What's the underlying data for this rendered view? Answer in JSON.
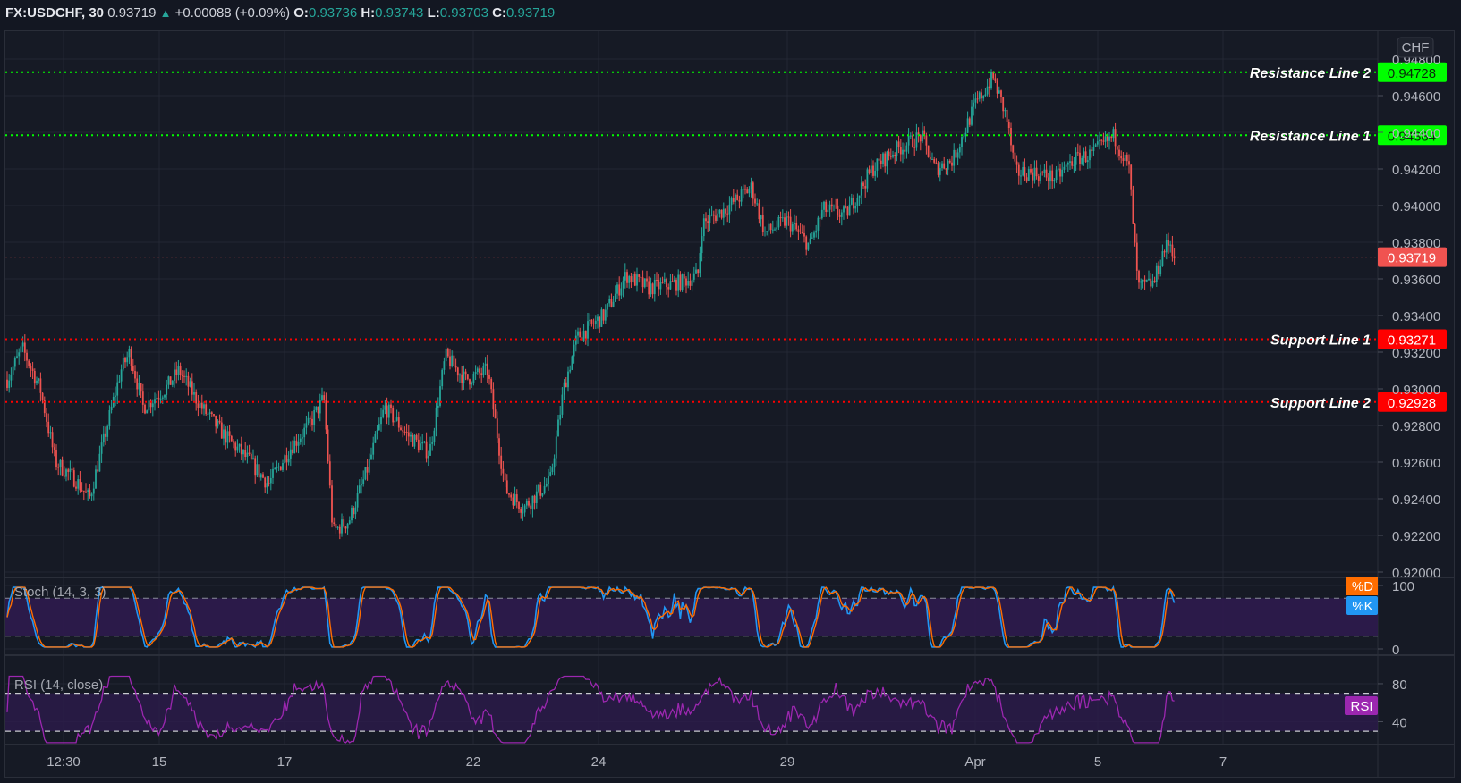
{
  "header": {
    "symbol": "FX:USDCHF, 30",
    "last": "0.93719",
    "change": "+0.00088 (+0.09%)",
    "o_label": "O:",
    "o": "0.93736",
    "h_label": "H:",
    "h": "0.93743",
    "l_label": "L:",
    "l": "0.93703",
    "c_label": "C:",
    "c": "0.93719"
  },
  "currency_badge": "CHF",
  "colors": {
    "background": "#131722",
    "pane": "#161a25",
    "grid": "#232733",
    "up": "#26a69a",
    "down": "#ef5350",
    "resistance": "#00ff00",
    "support": "#ff0000",
    "last_price": "#f05350",
    "stoch_k": "#2196f3",
    "stoch_d": "#ff6d00",
    "rsi": "#9c27b0",
    "band_fill": "#2d1b4e"
  },
  "price_axis": {
    "ticks": [
      "0.94600",
      "0.94400",
      "0.94200",
      "0.94000",
      "0.93800",
      "0.93600",
      "0.93400",
      "0.93200",
      "0.93000",
      "0.92800",
      "0.92600",
      "0.92400",
      "0.92200",
      "0.92000"
    ],
    "partial_top": "0.94800"
  },
  "levels": [
    {
      "name": "Resistance Line 2",
      "value": "0.94728",
      "type": "resistance"
    },
    {
      "name": "Resistance Line 1",
      "value": "0.94384",
      "type": "resistance"
    },
    {
      "name": "Support Line 1",
      "value": "0.93271",
      "type": "support"
    },
    {
      "name": "Support Line 2",
      "value": "0.92928",
      "type": "support"
    }
  ],
  "last_price_tag": "0.93719",
  "time_axis": [
    "12:30",
    "15",
    "17",
    "22",
    "24",
    "29",
    "Apr",
    "5",
    "7"
  ],
  "stoch": {
    "title": "Stoch (14, 3, 3)",
    "d_label": "%D",
    "k_label": "%K",
    "ticks": [
      "100",
      "0"
    ]
  },
  "rsi": {
    "title": "RSI (14, close)",
    "label": "RSI",
    "ticks": [
      "80",
      "40"
    ]
  },
  "chart_data": {
    "type": "candlestick",
    "title": "FX:USDCHF, 30",
    "xlabel": "",
    "ylabel": "CHF",
    "ylim": [
      0.92,
      0.948
    ],
    "x_ticks": [
      "12:30",
      "15",
      "17",
      "22",
      "24",
      "29",
      "Apr",
      "5",
      "7"
    ],
    "price_path_waypoints": [
      {
        "x": "12:30",
        "close": 0.9305
      },
      {
        "x": "~13",
        "close": 0.9245
      },
      {
        "x": "~14",
        "close": 0.9315
      },
      {
        "x": "15",
        "close": 0.929
      },
      {
        "x": "17",
        "close": 0.925
      },
      {
        "x": "~18",
        "close": 0.929
      },
      {
        "x": "~18.5",
        "close": 0.922
      },
      {
        "x": "~21",
        "close": 0.931
      },
      {
        "x": "22",
        "close": 0.93
      },
      {
        "x": "~22.5",
        "close": 0.923
      },
      {
        "x": "~23.5",
        "close": 0.925
      },
      {
        "x": "24",
        "close": 0.933
      },
      {
        "x": "~26",
        "close": 0.9365
      },
      {
        "x": "~27",
        "close": 0.939
      },
      {
        "x": "29",
        "close": 0.9395
      },
      {
        "x": "~30.5",
        "close": 0.9435
      },
      {
        "x": "~31.5",
        "close": 0.945
      },
      {
        "x": "Apr",
        "close": 0.9468
      },
      {
        "x": "~Apr 2",
        "close": 0.9415
      },
      {
        "x": "5",
        "close": 0.9432
      },
      {
        "x": "~5.5",
        "close": 0.936
      },
      {
        "x": "~6",
        "close": 0.93719
      }
    ],
    "last": {
      "open": 0.93736,
      "high": 0.93743,
      "low": 0.93703,
      "close": 0.93719,
      "change": 0.00088,
      "change_pct": 0.09
    },
    "horizontal_lines": [
      {
        "label": "Resistance Line 2",
        "value": 0.94728,
        "color": "#00ff00",
        "style": "dotted"
      },
      {
        "label": "Resistance Line 1",
        "value": 0.94384,
        "color": "#00ff00",
        "style": "dotted"
      },
      {
        "label": "Support Line 1",
        "value": 0.93271,
        "color": "#ff0000",
        "style": "dotted"
      },
      {
        "label": "Support Line 2",
        "value": 0.92928,
        "color": "#ff0000",
        "style": "dotted"
      }
    ],
    "indicators": [
      {
        "name": "Stoch (14, 3, 3)",
        "series": [
          "%K",
          "%D"
        ],
        "range": [
          0,
          100
        ],
        "bands": [
          20,
          80
        ]
      },
      {
        "name": "RSI (14, close)",
        "range": [
          0,
          100
        ],
        "bands": [
          30,
          70
        ],
        "visible_ticks": [
          40,
          80
        ]
      }
    ],
    "grid": true
  }
}
